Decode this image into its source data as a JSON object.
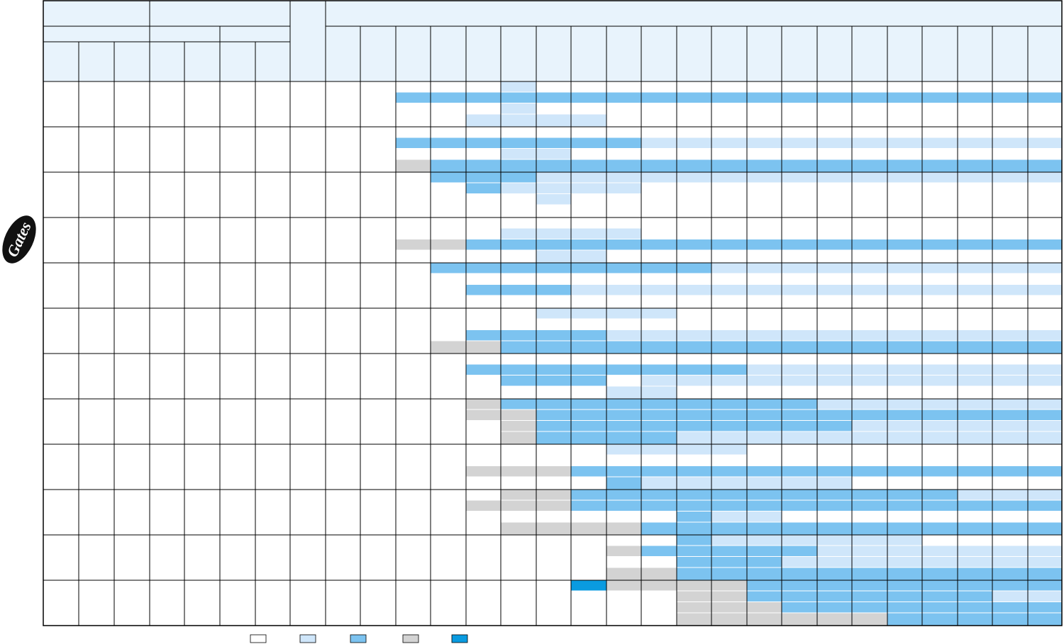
{
  "logo": {
    "text": "Gates"
  }
}
